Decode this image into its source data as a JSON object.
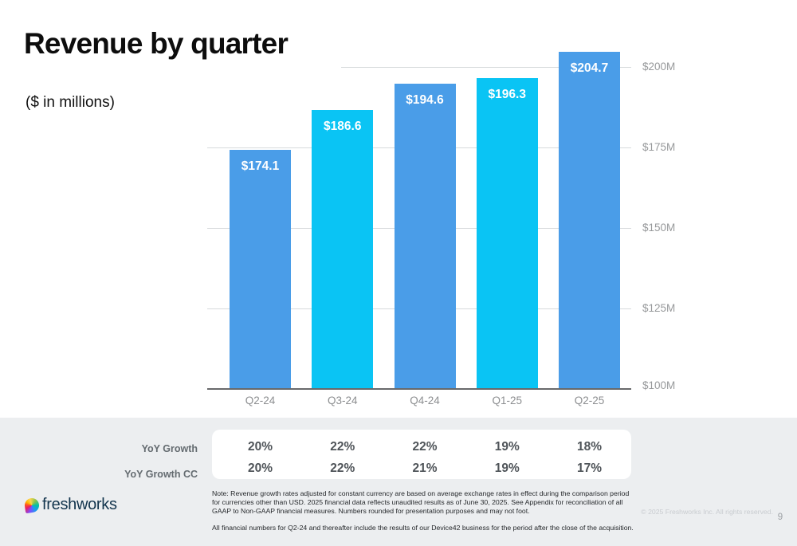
{
  "slide": {
    "title": "Revenue by quarter",
    "subtitle": "($ in millions)",
    "logo_text": "freshworks",
    "copyright": "© 2025 Freshworks Inc. All rights reserved.",
    "page_number": "9"
  },
  "chart_data": {
    "type": "bar",
    "title": "Revenue by quarter",
    "subtitle": "($ in millions)",
    "categories": [
      "Q2-24",
      "Q3-24",
      "Q4-24",
      "Q1-25",
      "Q2-25"
    ],
    "values": [
      174.1,
      186.6,
      194.6,
      196.3,
      204.7
    ],
    "bar_labels": [
      "$174.1",
      "$186.6",
      "$194.6",
      "$196.3",
      "$204.7"
    ],
    "bar_colors": [
      "#4a9de8",
      "#0ac4f4",
      "#4a9de8",
      "#0ac4f4",
      "#4a9de8"
    ],
    "xlabel": "",
    "ylabel": "",
    "ylim": [
      100,
      205
    ],
    "yticks": [
      {
        "value": 100,
        "label": "$100M"
      },
      {
        "value": 125,
        "label": "$125M"
      },
      {
        "value": 150,
        "label": "$150M"
      },
      {
        "value": 175,
        "label": "$175M"
      },
      {
        "value": 200,
        "label": "$200M"
      }
    ],
    "grid": true,
    "axis_side": "right",
    "legend": "none"
  },
  "growth_table": {
    "rows": [
      {
        "label": "YoY Growth",
        "values": [
          "20%",
          "22%",
          "22%",
          "19%",
          "18%"
        ]
      },
      {
        "label": "YoY Growth CC",
        "values": [
          "20%",
          "22%",
          "21%",
          "19%",
          "17%"
        ]
      }
    ]
  },
  "notes": {
    "paragraph1": "Note: Revenue growth rates adjusted for constant currency are based on average exchange rates in effect during the comparison period for currencies other than USD. 2025 financial data reflects unaudited results as of June 30, 2025. See Appendix for reconciliation of all GAAP to Non-GAAP financial measures. Numbers rounded for presentation purposes and may not foot.",
    "paragraph2": "All financial numbers for Q2-24 and thereafter include the results of our Device42 business for the period after the close of the acquisition."
  },
  "colors": {
    "bar_blue": "#4a9de8",
    "bar_cyan": "#0ac4f4",
    "footer_band": "#eceef0",
    "gridline": "#d7dadc",
    "axis_line": "#68696b",
    "axis_text": "#97999b"
  }
}
